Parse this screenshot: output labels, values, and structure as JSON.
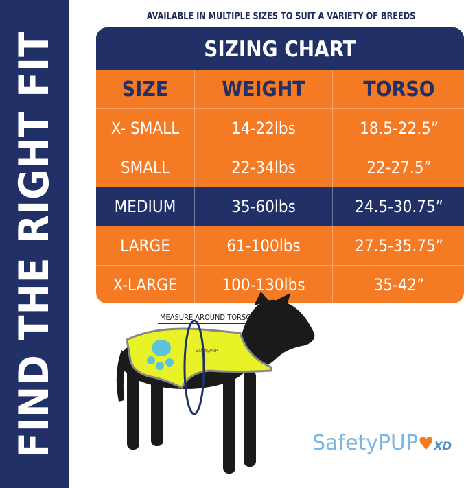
{
  "sidebar": {
    "text": "FIND THE RIGHT FIT"
  },
  "subtitle": "AVAILABLE IN MULTIPLE SIZES TO SUIT A VARIETY OF BREEDS",
  "sizing_chart": {
    "title": "SIZING CHART",
    "headers": [
      "SIZE",
      "WEIGHT",
      "TORSO"
    ],
    "rows": [
      [
        "X- SMALL",
        "14-22lbs",
        "18.5-22.5”"
      ],
      [
        "SMALL",
        "22-34lbs",
        "22-27.5”"
      ],
      [
        "MEDIUM",
        "35-60lbs",
        "24.5-30.75”"
      ],
      [
        "LARGE",
        "61-100lbs",
        "27.5-35.75”"
      ],
      [
        "X-LARGE",
        "100-130lbs",
        "35-42”"
      ]
    ],
    "highlighted_row": "MEDIUM"
  },
  "illustration": {
    "measure_label": "MEASURE AROUND TORSO",
    "vest_text": "SafetyPUP"
  },
  "logo": {
    "text": "SafetyPUP",
    "suffix": "XD"
  },
  "colors": {
    "navy": "#223068",
    "orange": "#f47a24",
    "vest_yellow": "#e8f227",
    "logo_blue": "#7ab6df"
  }
}
